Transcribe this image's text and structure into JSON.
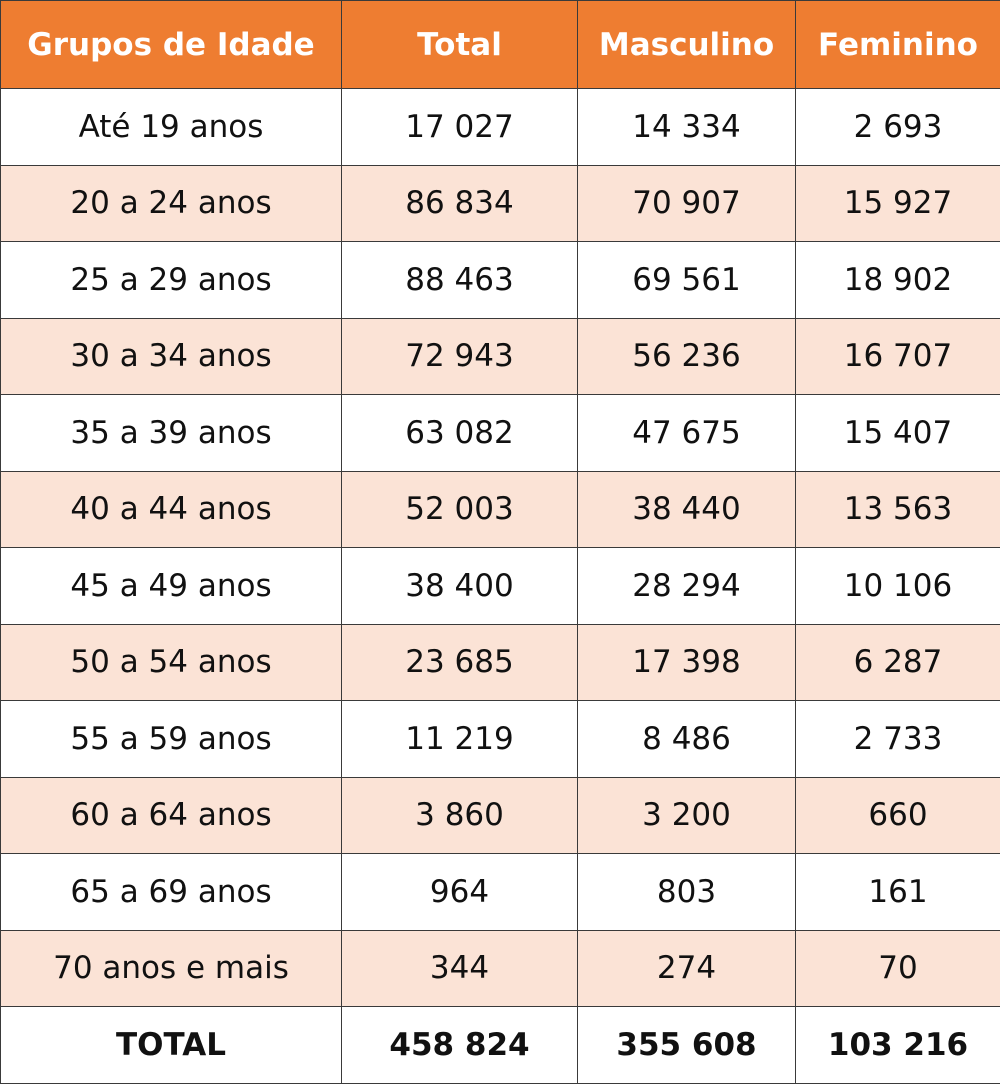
{
  "colors": {
    "header_bg": "#ee7d31",
    "header_text": "#ffffff",
    "stripe": "#fbe3d6",
    "border": "#3a3a3a"
  },
  "chart_data": {
    "type": "table",
    "columns": [
      "Grupos de Idade",
      "Total",
      "Masculino",
      "Feminino"
    ],
    "rows": [
      [
        "Até 19 anos",
        "17 027",
        "14 334",
        "2 693"
      ],
      [
        "20 a 24 anos",
        "86 834",
        "70 907",
        "15 927"
      ],
      [
        "25 a 29 anos",
        "88 463",
        "69 561",
        "18 902"
      ],
      [
        "30 a 34 anos",
        "72 943",
        "56 236",
        "16 707"
      ],
      [
        "35 a 39 anos",
        "63 082",
        "47 675",
        "15 407"
      ],
      [
        "40 a 44 anos",
        "52 003",
        "38 440",
        "13 563"
      ],
      [
        "45 a 49 anos",
        "38 400",
        "28 294",
        "10 106"
      ],
      [
        "50 a 54 anos",
        "23 685",
        "17 398",
        "6 287"
      ],
      [
        "55 a 59 anos",
        "11 219",
        "8 486",
        "2 733"
      ],
      [
        "60 a 64 anos",
        "3 860",
        "3 200",
        "660"
      ],
      [
        "65 a 69 anos",
        "964",
        "803",
        "161"
      ],
      [
        "70 anos e mais",
        "344",
        "274",
        "70"
      ]
    ],
    "total": [
      "TOTAL",
      "458 824",
      "355 608",
      "103 216"
    ]
  }
}
